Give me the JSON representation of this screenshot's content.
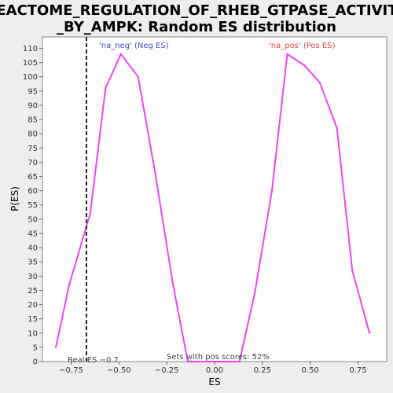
{
  "chart_data": {
    "type": "line",
    "title_lines": [
      "REACTOME_REGULATION_OF_RHEB_GTPASE_ACTIVITY",
      "_BY_AMPK: Random ES distribution"
    ],
    "xlabel": "ES",
    "ylabel": "P(ES)",
    "xlim": [
      -0.9,
      0.9
    ],
    "ylim": [
      0,
      114
    ],
    "x_ticks": [
      -0.75,
      -0.5,
      -0.25,
      0.0,
      0.25,
      0.5,
      0.75
    ],
    "x_tick_labels": [
      "−0.75",
      "−0.50",
      "−0.25",
      "0.00",
      "0.25",
      "0.50",
      "0.75"
    ],
    "y_ticks": [
      0,
      5,
      10,
      15,
      20,
      25,
      30,
      35,
      40,
      45,
      50,
      55,
      60,
      65,
      70,
      75,
      80,
      85,
      90,
      95,
      100,
      105,
      110
    ],
    "y_tick_labels": [
      "0",
      "5",
      "10",
      "15",
      "20",
      "25",
      "30",
      "35",
      "40",
      "45",
      "50",
      "55",
      "60",
      "65",
      "70",
      "75",
      "80",
      "85",
      "90",
      "95",
      "100",
      "105",
      "110"
    ],
    "series": [
      {
        "name": "",
        "color": "#ee44ee",
        "points": [
          [
            -0.83,
            5
          ],
          [
            -0.76,
            27
          ],
          [
            -0.65,
            52
          ],
          [
            -0.57,
            96
          ],
          [
            -0.49,
            108
          ],
          [
            -0.4,
            100
          ],
          [
            -0.31,
            66
          ],
          [
            -0.22,
            28
          ],
          [
            -0.14,
            0
          ],
          [
            0.13,
            0
          ],
          [
            0.21,
            24
          ],
          [
            0.3,
            60
          ],
          [
            0.38,
            108
          ],
          [
            0.47,
            104
          ],
          [
            0.55,
            98
          ],
          [
            0.64,
            82
          ],
          [
            0.72,
            32
          ],
          [
            0.81,
            10
          ]
        ]
      }
    ],
    "real_es": -0.67,
    "real_es_label": "Real ES −0.7",
    "neg_label": "'na_neg' (Neg ES)",
    "pos_label": "'na_pos' (Pos ES)",
    "pos_fraction_label": "Sets with pos scores: 52%",
    "colors": {
      "neg": "#4444cc",
      "pos": "#dd4444",
      "line": "#ee44ee"
    }
  }
}
